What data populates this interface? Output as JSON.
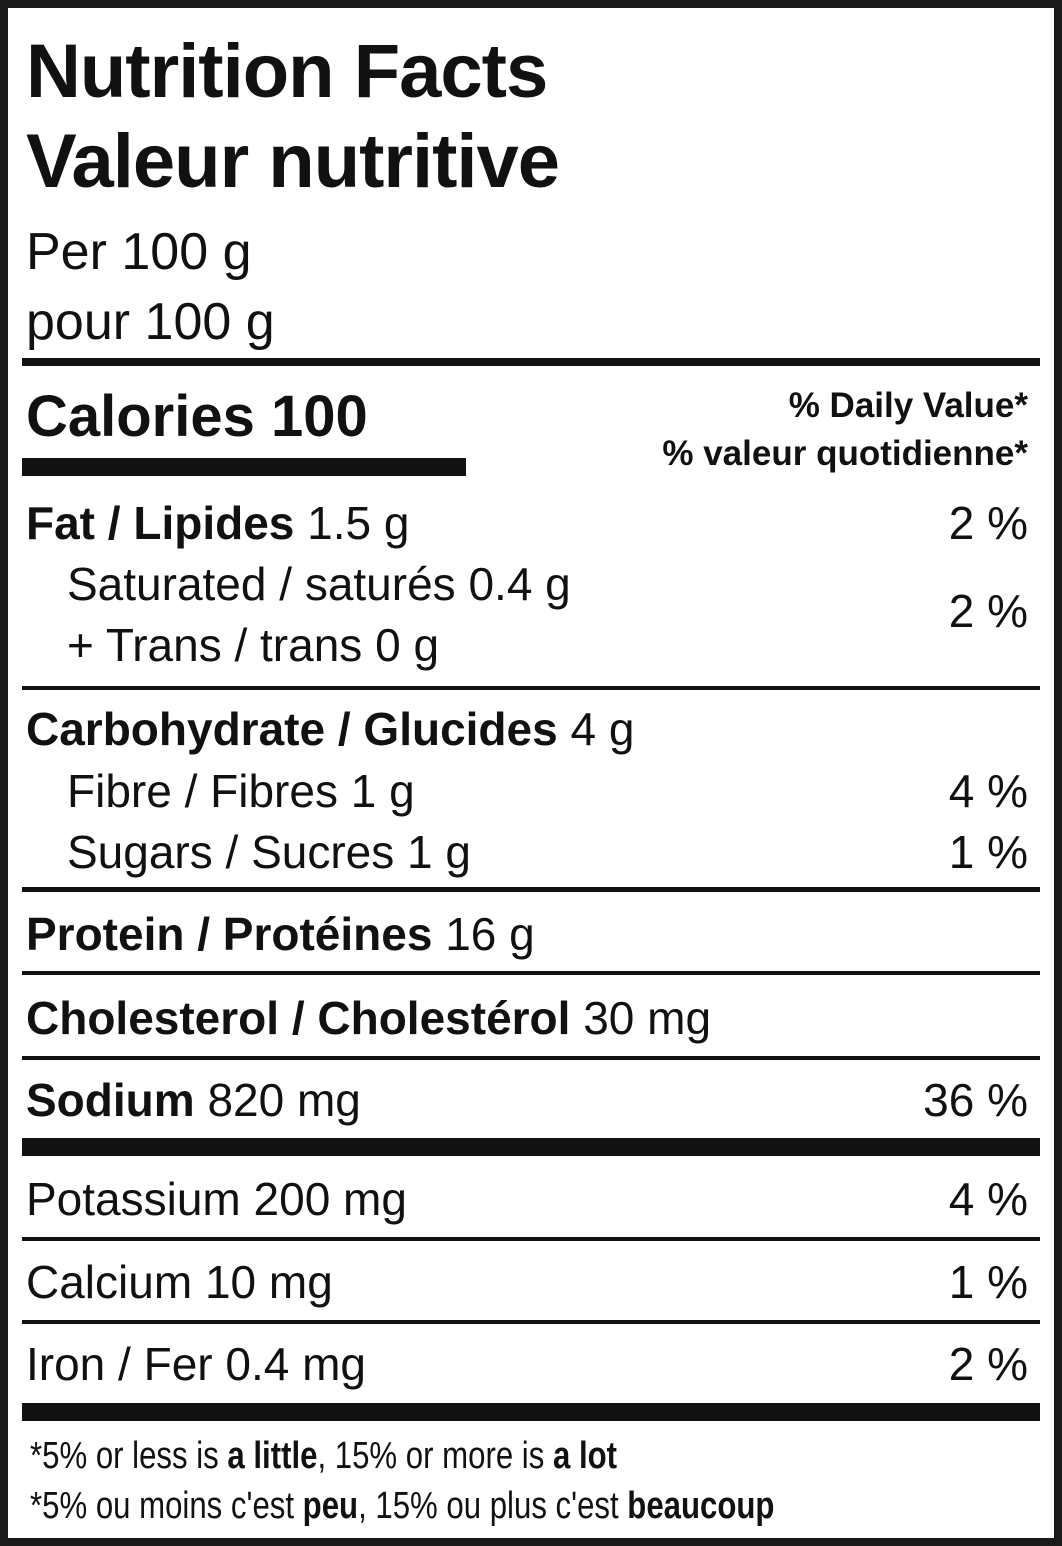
{
  "title_en": "Nutrition Facts",
  "title_fr": "Valeur nutritive",
  "serving_en": "Per 100 g",
  "serving_fr": "pour 100 g",
  "calories": {
    "label": "Calories",
    "value": "100"
  },
  "daily_value_en": "% Daily Value*",
  "daily_value_fr": "% valeur quotidienne*",
  "fat": {
    "label": "Fat / Lipides",
    "amount": "1.5 g",
    "dv": "2 %"
  },
  "saturated": {
    "label": "Saturated / saturés",
    "amount": "0.4 g"
  },
  "trans": {
    "label": "+ Trans / trans",
    "amount": "0 g"
  },
  "sat_trans_dv": "2 %",
  "carbohydrate": {
    "label": "Carbohydrate / Glucides",
    "amount": "4 g"
  },
  "fibre": {
    "label": "Fibre / Fibres",
    "amount": "1 g",
    "dv": "4 %"
  },
  "sugars": {
    "label": "Sugars / Sucres",
    "amount": "1 g",
    "dv": "1 %"
  },
  "protein": {
    "label": "Protein / Protéines",
    "amount": "16 g"
  },
  "cholesterol": {
    "label": "Cholesterol / Cholestérol",
    "amount": "30 mg"
  },
  "sodium": {
    "label": "Sodium",
    "amount": "820 mg",
    "dv": "36 %"
  },
  "potassium": {
    "label": "Potassium",
    "amount": "200 mg",
    "dv": "4 %"
  },
  "calcium": {
    "label": "Calcium",
    "amount": "10 mg",
    "dv": "1 %"
  },
  "iron": {
    "label": "Iron / Fer",
    "amount": "0.4 mg",
    "dv": "2 %"
  },
  "footnote_en": {
    "a": "*5% or less is ",
    "b": "a little",
    "c": ", 15% or more is ",
    "d": "a lot"
  },
  "footnote_fr": {
    "a": "*5% ou moins c'est ",
    "b": "peu",
    "c": ", 15% ou plus c'est ",
    "d": "beaucoup"
  }
}
